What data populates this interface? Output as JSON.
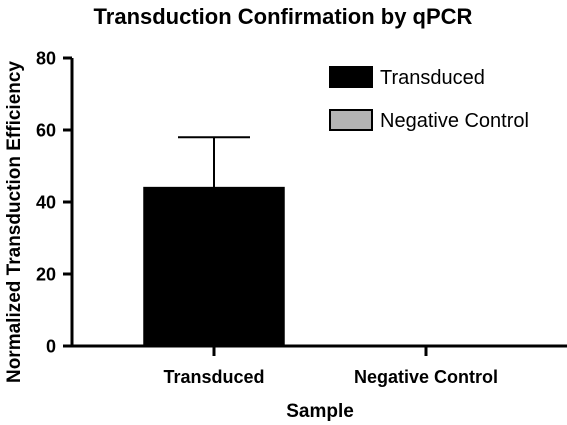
{
  "chart_data": {
    "type": "bar",
    "title": "Transduction Confirmation by qPCR",
    "xlabel": "Sample",
    "ylabel": "Normalized Transduction Efficiency",
    "categories": [
      "Transduced",
      "Negative Control"
    ],
    "values": [
      44,
      0
    ],
    "error_upper": [
      14,
      0
    ],
    "ylim": [
      0,
      80
    ],
    "yticks": [
      "0",
      "20",
      "40",
      "60",
      "80"
    ],
    "grid": false,
    "legend_position": "top-right",
    "legend": [
      {
        "label": "Transduced",
        "color": "#000000"
      },
      {
        "label": "Negative Control",
        "color": "#b3b3b3"
      }
    ],
    "colors": [
      "#000000",
      "#b3b3b3"
    ]
  }
}
